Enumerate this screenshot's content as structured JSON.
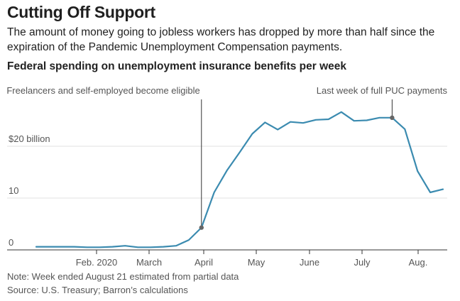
{
  "title": "Cutting Off Support",
  "subtitle": "The amount of money going to jobless workers has dropped by more than half since the expiration of the Pandemic Unemployment Compensation payments.",
  "chart_heading": "Federal spending on unemployment insurance benefits per week",
  "note": "Note: Week ended August 21 estimated from partial data",
  "source": "Source: U.S. Treasury; Barron’s calculations",
  "colors": {
    "line": "#3b8bb0",
    "grid": "#e2e2e2",
    "axis": "#333333",
    "marker": "#666666"
  },
  "chart_data": {
    "type": "line",
    "title": "Federal spending on unemployment insurance benefits per week",
    "ylim": [
      0,
      30
    ],
    "y_ticks": [
      {
        "value": 0,
        "label": "0"
      },
      {
        "value": 10,
        "label": "10"
      },
      {
        "value": 20,
        "label": "$20 billion"
      }
    ],
    "x_ticks": [
      "Feb. 2020",
      "March",
      "April",
      "May",
      "June",
      "July",
      "Aug."
    ],
    "series": [
      {
        "values": [
          0.6,
          0.6,
          0.6,
          0.6,
          0.5,
          0.5,
          0.6,
          0.8,
          0.5,
          0.5,
          0.6,
          0.8,
          1.9,
          4.3,
          11.1,
          15.3,
          18.8,
          22.4,
          24.6,
          23.2,
          24.7,
          24.5,
          25.1,
          25.2,
          26.6,
          24.9,
          25.0,
          25.5,
          25.5,
          23.3,
          15.2,
          11.1,
          11.7
        ]
      }
    ],
    "annotations": [
      {
        "text": "Freelancers and self-employed become eligible",
        "index": 13,
        "value": 4.3
      },
      {
        "text": "Last week of full PUC payments",
        "index": 28,
        "value": 25.5
      }
    ],
    "grid": true
  }
}
